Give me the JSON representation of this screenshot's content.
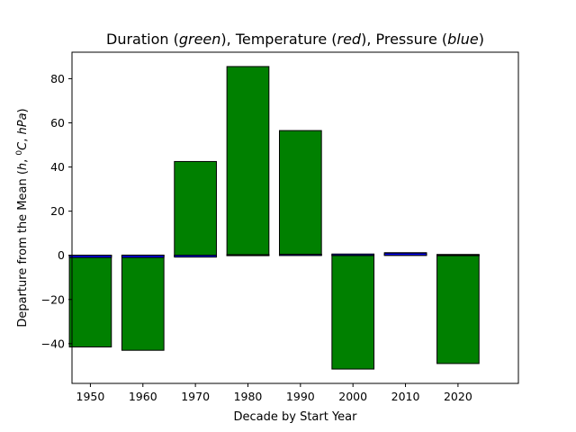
{
  "chart_data": {
    "type": "bar",
    "title_parts": [
      {
        "text": "Duration (",
        "italic": false
      },
      {
        "text": "green",
        "italic": true
      },
      {
        "text": "),  Temperature (",
        "italic": false
      },
      {
        "text": "red",
        "italic": true
      },
      {
        "text": "),  Pressure (",
        "italic": false
      },
      {
        "text": "blue",
        "italic": true
      },
      {
        "text": ")",
        "italic": false
      }
    ],
    "xlabel": "Decade by Start Year",
    "ylabel_parts": [
      {
        "text": "Departure from the Mean (",
        "italic": false,
        "sup": false
      },
      {
        "text": "h",
        "italic": true,
        "sup": false
      },
      {
        "text": ", ",
        "italic": false,
        "sup": false
      },
      {
        "text": "0",
        "italic": false,
        "sup": true
      },
      {
        "text": "C",
        "italic": true,
        "sup": false
      },
      {
        "text": ", ",
        "italic": false,
        "sup": false
      },
      {
        "text": "hPa",
        "italic": true,
        "sup": false
      },
      {
        "text": ")",
        "italic": false,
        "sup": false
      }
    ],
    "x": [
      1950,
      1960,
      1970,
      1980,
      1990,
      2000,
      2010,
      2020
    ],
    "bar_width": 8,
    "xlim": [
      1946.5,
      2031.5
    ],
    "ylim": [
      -58,
      92
    ],
    "xticks": [
      1950,
      1960,
      1970,
      1980,
      1990,
      2000,
      2010,
      2020
    ],
    "yticks": [
      -40,
      -20,
      0,
      20,
      40,
      60,
      80
    ],
    "grid": false,
    "legend": "none",
    "series": [
      {
        "key": "duration",
        "color": "#008000",
        "values": [
          -41.5,
          -43.0,
          42.5,
          85.5,
          56.5,
          -51.5,
          1.2,
          -49.0
        ]
      },
      {
        "key": "temperature",
        "color": "#ff0000",
        "values": [
          -0.3,
          -0.2,
          -0.4,
          0.1,
          0.3,
          0.2,
          0.5,
          0.1
        ]
      },
      {
        "key": "pressure",
        "color": "#0000ff",
        "values": [
          -1.0,
          -1.0,
          -0.8,
          0.2,
          0.5,
          0.6,
          1.0,
          0.4
        ]
      }
    ]
  }
}
